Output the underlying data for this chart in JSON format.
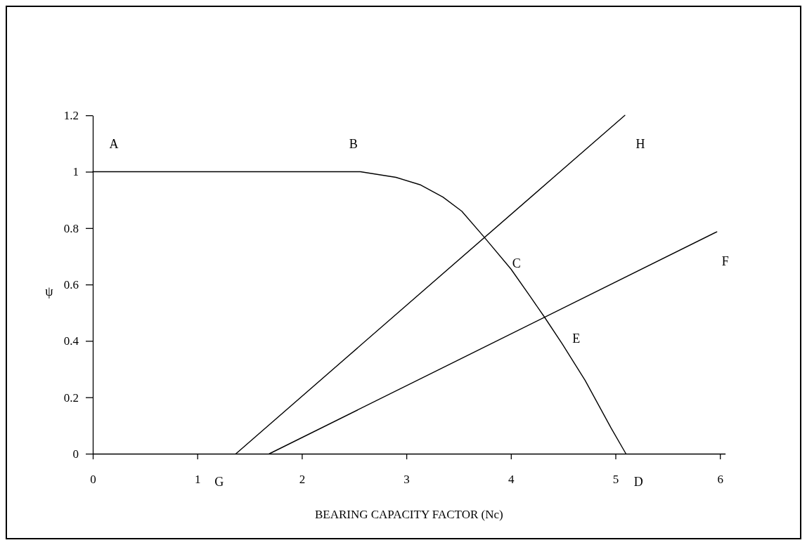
{
  "chart_data": {
    "type": "line",
    "xlabel": "BEARING CAPACITY FACTOR (Nc)",
    "ylabel": "ψ",
    "xlim": [
      0,
      6.05
    ],
    "ylim": [
      0,
      1.2
    ],
    "xticks": [
      0,
      1,
      2,
      3,
      4,
      5,
      6
    ],
    "yticks": [
      0,
      0.2,
      0.4,
      0.6,
      0.8,
      1,
      1.2
    ],
    "marker": "none",
    "line_style": "solid",
    "series": [
      {
        "color": "#000000",
        "x": [
          0,
          2.56,
          2.9,
          3.13,
          3.35,
          3.53,
          3.74,
          4.0,
          4.18,
          4.32,
          4.49,
          4.71,
          4.96,
          5.1
        ],
        "values": [
          1,
          1,
          0.98,
          0.954,
          0.91,
          0.86,
          0.77,
          0.655,
          0.56,
          0.485,
          0.39,
          0.26,
          0.09,
          0
        ]
      },
      {
        "color": "#000000",
        "x": [
          1.37,
          5.09
        ],
        "values": [
          0,
          1.2
        ]
      },
      {
        "color": "#000000",
        "x": [
          1.69,
          5.97
        ],
        "values": [
          0,
          0.787
        ]
      }
    ],
    "annotations": [
      {
        "text": "A",
        "x": 0,
        "y": 1
      },
      {
        "text": "B",
        "x": 2.56,
        "y": 1
      },
      {
        "text": "H",
        "x": 5.09,
        "y": 1.2
      },
      {
        "text": "C",
        "x": 4.0,
        "y": 0.655
      },
      {
        "text": "E",
        "x": 4.49,
        "y": 0.39
      },
      {
        "text": "F",
        "x": 5.97,
        "y": 0.787
      },
      {
        "text": "G",
        "x": 1.37,
        "y": 0
      },
      {
        "text": "D",
        "x": 5.1,
        "y": 0
      }
    ]
  }
}
